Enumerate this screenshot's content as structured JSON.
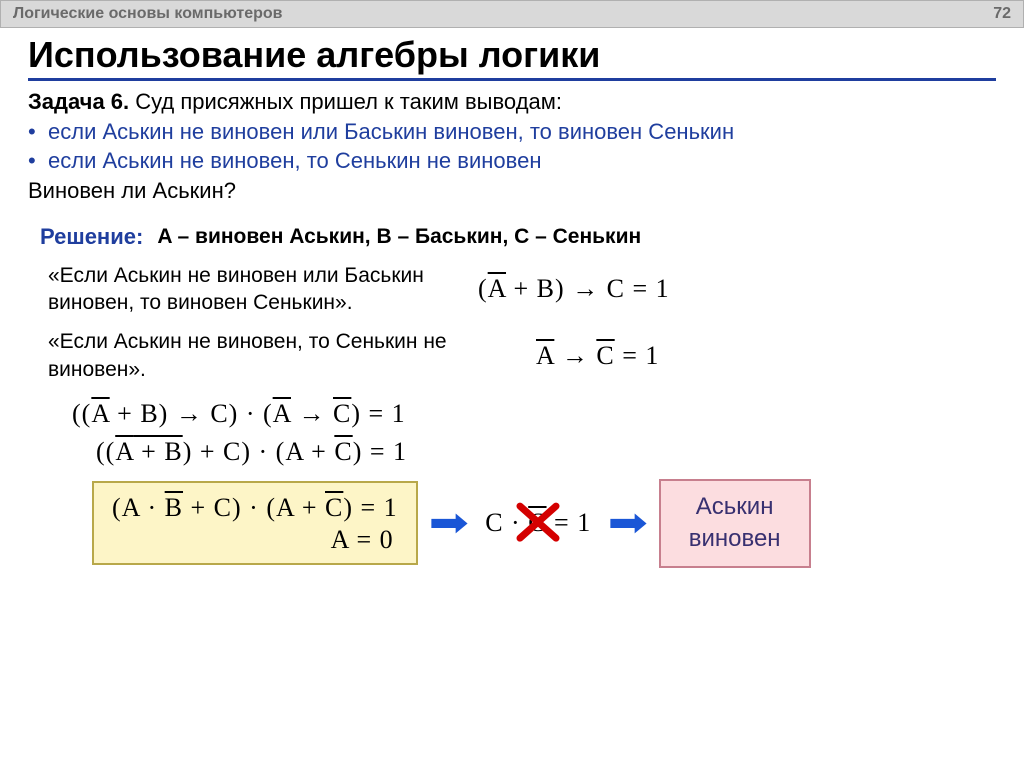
{
  "header": {
    "topic": "Логические основы компьютеров",
    "page_number": "72"
  },
  "title": "Использование алгебры логики",
  "task": {
    "label": "Задача 6.",
    "intro": " Суд присяжных пришел к таким выводам:",
    "bullets": [
      "если Аськин не виновен или Баськин виновен, то виновен Сенькин",
      "если Аськин не виновен, то Сенькин не виновен"
    ],
    "question": "Виновен ли Аськин?"
  },
  "solution": {
    "label": "Решение:",
    "legend": "A – виновен Аськин, B – Баськин, C – Сенькин"
  },
  "premises": [
    {
      "text": "«Если Аськин не виновен или Баськин виновен, то виновен Сенькин».",
      "formula_html": "(<span class='ov'>A</span> + B) → C = 1"
    },
    {
      "text": "«Если Аськин не виновен, то Сенькин не виновен».",
      "formula_html": "<span class='ov'>A</span> → <span class='ov'>C</span> = 1"
    }
  ],
  "derivation": [
    "((<span class='ov'>A</span> + B) → C) · (<span class='ov'>A</span> → <span class='ov'>C</span>) = 1",
    "((<span class='ov'><span class='ov'>A</span> + B</span>) + C) · (A + <span class='ov'>C</span>) = 1"
  ],
  "boxed": {
    "line1": "(A · <span class='ov'>B</span> + C) · (A + <span class='ov'>C</span>) = 1",
    "line2": "A = 0"
  },
  "contradiction": "C · <span class='ov'>C</span> = 1",
  "answer": {
    "line1": "Аськин",
    "line2": "виновен"
  },
  "style": {
    "accent_color": "#1f3e9e",
    "arrow_color": "#1a56d6",
    "cross_color": "#d40000",
    "yellow_box_bg": "#fdf5c7",
    "yellow_box_border": "#b8a84a",
    "pink_box_bg": "#fcdde0",
    "pink_box_border": "#c77f8e",
    "header_bg": "#d9d9d9"
  }
}
